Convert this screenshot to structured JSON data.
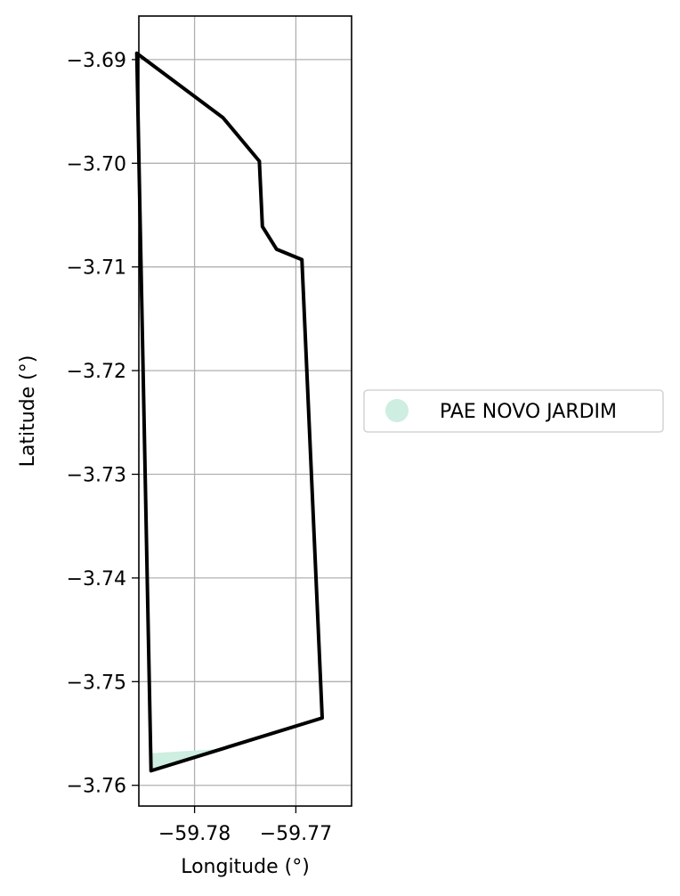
{
  "chart_data": {
    "type": "map",
    "xlabel": "Longitude (°)",
    "ylabel": "Latitude (°)",
    "xlim": [
      -59.7855,
      -59.7645
    ],
    "ylim": [
      -3.762,
      -3.6858
    ],
    "x_ticks": [
      {
        "value": -59.78,
        "label": "−59.78"
      },
      {
        "value": -59.77,
        "label": "−59.77"
      }
    ],
    "y_ticks": [
      {
        "value": -3.69,
        "label": "−3.69"
      },
      {
        "value": -3.7,
        "label": "−3.70"
      },
      {
        "value": -3.71,
        "label": "−3.71"
      },
      {
        "value": -3.72,
        "label": "−3.72"
      },
      {
        "value": -3.73,
        "label": "−3.73"
      },
      {
        "value": -3.74,
        "label": "−3.74"
      },
      {
        "value": -3.75,
        "label": "−3.75"
      },
      {
        "value": -3.76,
        "label": "−3.76"
      }
    ],
    "grid": true,
    "legend_position": "right",
    "layers": [
      {
        "name": "PAE NOVO JARDIM",
        "color": "#cdeee0",
        "kind": "fill",
        "coordinates": [
          [
            -59.7842,
            -3.7586
          ],
          [
            -59.7842,
            -3.7569
          ],
          [
            -59.7776,
            -3.7565
          ],
          [
            -59.7845,
            -3.7587
          ]
        ]
      },
      {
        "name": "boundary",
        "color": "#000000",
        "kind": "outline",
        "coordinates": [
          [
            -59.7857,
            -3.6894
          ],
          [
            -59.7772,
            -3.6956
          ],
          [
            -59.7736,
            -3.6998
          ],
          [
            -59.7733,
            -3.7061
          ],
          [
            -59.7719,
            -3.7083
          ],
          [
            -59.7694,
            -3.7093
          ],
          [
            -59.7674,
            -3.7535
          ],
          [
            -59.7843,
            -3.7586
          ],
          [
            -59.7857,
            -3.6894
          ]
        ]
      }
    ],
    "legend": [
      {
        "label": "PAE NOVO JARDIM",
        "color": "#cdeee0"
      }
    ]
  }
}
